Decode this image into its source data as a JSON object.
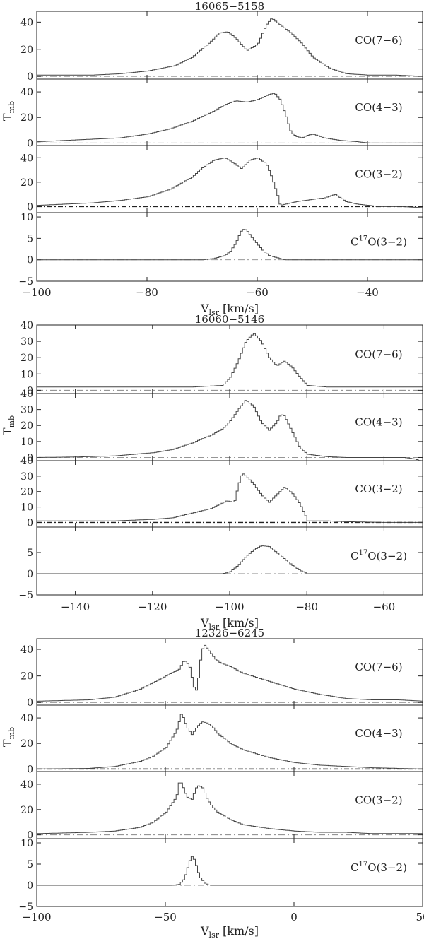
{
  "chart_data": [
    {
      "type": "line",
      "title": "16065−5158",
      "xlabel": "V",
      "xlabel_sub": "lsr",
      "xlabel_unit": "[km/s]",
      "ylabel": "T",
      "ylabel_sub": "mb",
      "xlim": [
        -100,
        -30
      ],
      "xticks": [
        -100,
        -80,
        -60,
        -40
      ],
      "xtick_labels": [
        "−100",
        "−80",
        "−60",
        "−40"
      ],
      "panels": [
        {
          "label": "CO(7−6)",
          "ylim": [
            -2,
            48
          ],
          "yticks": [
            0,
            20,
            40
          ],
          "ytick_labels": [
            "0",
            "20",
            "40"
          ],
          "zero_style": "dashdot",
          "x": [
            -100,
            -90,
            -85,
            -80,
            -75,
            -72,
            -69,
            -67,
            -65.5,
            -64,
            -62,
            -60,
            -58.5,
            -57.5,
            -56,
            -54,
            -52,
            -50,
            -47,
            -44,
            -40,
            -35,
            -30
          ],
          "y": [
            1,
            1,
            2,
            4,
            8,
            14,
            24,
            32,
            33,
            28,
            19,
            24,
            38,
            43,
            38,
            32,
            24,
            14,
            6,
            2,
            1,
            1,
            0
          ]
        },
        {
          "label": "CO(4−3)",
          "ylim": [
            -2,
            50
          ],
          "yticks": [
            0,
            20,
            40
          ],
          "ytick_labels": [
            "0",
            "20",
            "40"
          ],
          "zero_style": "dashdot",
          "x": [
            -100,
            -95,
            -90,
            -85,
            -80,
            -76,
            -72,
            -70,
            -68,
            -66,
            -64,
            -62,
            -60,
            -58,
            -57,
            -56,
            -55,
            -54,
            -53,
            -52,
            -51,
            -50,
            -48,
            -45,
            -42,
            -40,
            -35,
            -30
          ],
          "y": [
            1,
            2,
            3,
            4,
            7,
            11,
            17,
            21,
            25,
            30,
            33,
            32,
            34,
            38,
            39,
            34,
            22,
            8,
            5,
            4,
            6,
            7,
            4,
            2,
            1,
            0,
            0,
            0
          ]
        },
        {
          "label": "CO(3−2)",
          "ylim": [
            -5,
            50
          ],
          "yticks": [
            0,
            20,
            40
          ],
          "ytick_labels": [
            "0",
            "20",
            "40"
          ],
          "zero_style": "dashdot-bold",
          "x": [
            -100,
            -95,
            -90,
            -85,
            -80,
            -76,
            -72,
            -70,
            -68,
            -66,
            -64.5,
            -63,
            -61.5,
            -60,
            -58.5,
            -57.5,
            -56.5,
            -56,
            -55,
            -53,
            -50,
            -48,
            -46,
            -44,
            -42,
            -38,
            -34,
            -30
          ],
          "y": [
            1,
            2,
            3,
            5,
            8,
            14,
            24,
            32,
            38,
            40,
            36,
            31,
            38,
            40,
            35,
            24,
            10,
            1,
            2,
            4,
            6,
            7,
            10,
            4,
            2,
            0,
            0,
            -1
          ]
        },
        {
          "label": "C¹⁷O(3−2)",
          "label_main": "C",
          "label_sup": "17",
          "label_rest": "O(3−2)",
          "ylim": [
            -5,
            11
          ],
          "yticks": [
            -5,
            0,
            5,
            10
          ],
          "ytick_labels": [
            "−5",
            "0",
            "5",
            "10"
          ],
          "zero_style": "dashdot",
          "x": [
            -100,
            -90,
            -80,
            -70,
            -68,
            -66,
            -65,
            -64,
            -63.5,
            -63,
            -62.5,
            -62,
            -61,
            -60,
            -59,
            -58,
            -56,
            -55,
            -50,
            -40,
            -30
          ],
          "y": [
            0,
            0,
            0,
            0,
            0.3,
            1,
            2,
            4,
            5.5,
            6.8,
            7.2,
            6.8,
            5,
            3.5,
            2,
            1,
            0.3,
            0,
            0,
            0,
            0
          ]
        }
      ]
    },
    {
      "type": "line",
      "title": "16060−5146",
      "xlabel": "V",
      "xlabel_sub": "lsr",
      "xlabel_unit": "[km/s]",
      "ylabel": "T",
      "ylabel_sub": "mb",
      "xlim": [
        -150,
        -50
      ],
      "xticks": [
        -140,
        -120,
        -100,
        -80,
        -60
      ],
      "xtick_labels": [
        "−140",
        "−120",
        "−100",
        "−80",
        "−60"
      ],
      "panels": [
        {
          "label": "CO(7−6)",
          "ylim": [
            -2,
            40
          ],
          "yticks": [
            0,
            10,
            20,
            30,
            40
          ],
          "ytick_labels": [
            "0",
            "10",
            "20",
            "30",
            "40"
          ],
          "zero_style": "dashdot",
          "x": [
            -150,
            -130,
            -110,
            -102,
            -100,
            -98,
            -96,
            -94,
            -92,
            -90,
            -88,
            -86,
            -84,
            -82,
            -80,
            -75,
            -70,
            -60,
            -50
          ],
          "y": [
            2,
            2,
            2,
            3,
            8,
            18,
            30,
            35,
            30,
            20,
            15,
            18,
            14,
            8,
            3,
            2,
            2,
            2,
            2
          ]
        },
        {
          "label": "CO(4−3)",
          "ylim": [
            -2,
            40
          ],
          "yticks": [
            0,
            10,
            20,
            30,
            40
          ],
          "ytick_labels": [
            "0",
            "10",
            "20",
            "30",
            "40"
          ],
          "zero_style": "dashdot",
          "x": [
            -150,
            -140,
            -130,
            -120,
            -115,
            -110,
            -105,
            -102,
            -100,
            -98,
            -96,
            -94,
            -92,
            -90,
            -88,
            -87,
            -86,
            -84,
            -82,
            -80,
            -75,
            -70,
            -60,
            -55,
            -52,
            -50
          ],
          "y": [
            0,
            0.3,
            1,
            3,
            5,
            9,
            14,
            18,
            23,
            30,
            36,
            32,
            22,
            17,
            22,
            27,
            26,
            16,
            6,
            2,
            0.5,
            0,
            0,
            0,
            -1,
            -3
          ]
        },
        {
          "label": "CO(3−2)",
          "ylim": [
            -3,
            40
          ],
          "yticks": [
            0,
            10,
            20,
            30,
            40
          ],
          "ytick_labels": [
            "0",
            "10",
            "20",
            "30",
            "40"
          ],
          "zero_style": "dashdot-bold",
          "x": [
            -150,
            -140,
            -130,
            -120,
            -115,
            -110,
            -105,
            -101,
            -99,
            -98,
            -97,
            -96,
            -94,
            -92,
            -90,
            -88,
            -86,
            -84,
            -82,
            -80.5,
            -80,
            -75,
            -70,
            -60,
            -50
          ],
          "y": [
            1,
            1,
            1,
            2,
            3,
            6,
            9,
            14,
            13,
            24,
            32,
            30,
            25,
            18,
            13,
            18,
            23,
            19,
            12,
            4,
            1,
            1,
            0.5,
            0,
            0
          ]
        },
        {
          "label": "C¹⁷O(3−2)",
          "label_main": "C",
          "label_sup": "17",
          "label_rest": "O(3−2)",
          "ylim": [
            -5,
            11
          ],
          "yticks": [
            -5,
            0,
            5
          ],
          "ytick_labels": [
            "−5",
            "0",
            "5"
          ],
          "zero_style": "dashdot",
          "x": [
            -150,
            -120,
            -110,
            -102,
            -100,
            -98,
            -96,
            -94,
            -92,
            -90,
            -88,
            -86,
            -84,
            -82,
            -80,
            -70,
            -50
          ],
          "y": [
            0,
            0,
            0,
            0,
            0.5,
            2,
            4,
            5.6,
            6.6,
            6.4,
            5,
            3.5,
            2,
            0.8,
            0,
            0,
            0
          ]
        }
      ]
    },
    {
      "type": "line",
      "title": "12326−6245",
      "xlabel": "V",
      "xlabel_sub": "lsr",
      "xlabel_unit": "[km/s]",
      "ylabel": "T",
      "ylabel_sub": "mb",
      "xlim": [
        -100,
        50
      ],
      "xticks": [
        -100,
        -50,
        0,
        50
      ],
      "xtick_labels": [
        "−100",
        "−50",
        "0",
        "50"
      ],
      "panels": [
        {
          "label": "CO(7−6)",
          "ylim": [
            -2,
            48
          ],
          "yticks": [
            0,
            20,
            40
          ],
          "ytick_labels": [
            "0",
            "20",
            "40"
          ],
          "zero_style": "dashdot",
          "x": [
            -100,
            -80,
            -70,
            -60,
            -55,
            -50,
            -45,
            -43,
            -41,
            -39,
            -38,
            -37,
            -36,
            -35,
            -33,
            -31,
            -29,
            -25,
            -20,
            -10,
            0,
            10,
            20,
            30,
            40,
            50
          ],
          "y": [
            1,
            2,
            4,
            10,
            15,
            20,
            25,
            32,
            28,
            10,
            9,
            28,
            40,
            43,
            38,
            33,
            30,
            27,
            22,
            16,
            10,
            6,
            3,
            2,
            2,
            1
          ]
        },
        {
          "label": "CO(4−3)",
          "ylim": [
            -2,
            50
          ],
          "yticks": [
            0,
            20,
            40
          ],
          "ytick_labels": [
            "0",
            "20",
            "40"
          ],
          "zero_style": "dashdot-bold",
          "x": [
            -100,
            -80,
            -70,
            -60,
            -55,
            -50,
            -46,
            -44,
            -42,
            -40,
            -38,
            -36,
            -34,
            -32,
            -30,
            -25,
            -20,
            -10,
            0,
            10,
            20,
            30,
            40,
            50
          ],
          "y": [
            0,
            0.5,
            2,
            6,
            10,
            17,
            30,
            44,
            33,
            27,
            33,
            37,
            36,
            33,
            28,
            20,
            15,
            9,
            5,
            3,
            2,
            1,
            0.5,
            0
          ]
        },
        {
          "label": "CO(3−2)",
          "ylim": [
            -3,
            50
          ],
          "yticks": [
            0,
            20,
            40
          ],
          "ytick_labels": [
            "0",
            "20",
            "40"
          ],
          "zero_style": "dashdot",
          "x": [
            -100,
            -80,
            -70,
            -60,
            -55,
            -50,
            -46,
            -45,
            -44,
            -42,
            -40,
            -38,
            -36,
            -34,
            -32,
            -30,
            -25,
            -20,
            -10,
            0,
            10,
            20,
            30,
            40,
            50
          ],
          "y": [
            1,
            2,
            3,
            6,
            10,
            18,
            30,
            41,
            41,
            30,
            28,
            39,
            38,
            28,
            22,
            18,
            12,
            8,
            5,
            3,
            2,
            2,
            1,
            1,
            1
          ]
        },
        {
          "label": "C¹⁷O(3−2)",
          "label_main": "C",
          "label_sup": "17",
          "label_rest": "O(3−2)",
          "ylim": [
            -5,
            11
          ],
          "yticks": [
            -5,
            0,
            5,
            10
          ],
          "ytick_labels": [
            "−5",
            "0",
            "5",
            "10"
          ],
          "zero_style": "dashdot",
          "x": [
            -100,
            -60,
            -48,
            -45,
            -43,
            -42,
            -41,
            -40.5,
            -40,
            -39,
            -38,
            -37,
            -35,
            -33,
            -30,
            0,
            50
          ],
          "y": [
            0,
            0,
            0,
            0.2,
            1.5,
            3.5,
            5.5,
            6.5,
            6.8,
            6,
            4,
            2,
            0.5,
            0,
            0,
            0,
            0
          ]
        }
      ]
    }
  ]
}
